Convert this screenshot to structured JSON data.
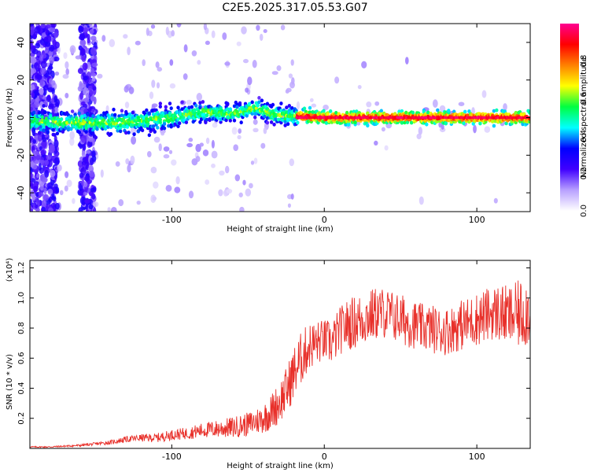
{
  "title": "C2E5.2025.317.05.53.G07",
  "chart_data": [
    {
      "type": "heatmap",
      "xlabel": "Height of straight line (km)",
      "ylabel": "Frequency (Hz)",
      "xlim": [
        -193,
        135
      ],
      "ylim": [
        -50,
        50
      ],
      "xticks": [
        -100,
        0,
        100
      ],
      "yticks": [
        -40,
        -20,
        0,
        20,
        40
      ],
      "colorbar": {
        "label": "Normalized spectral amplitude",
        "range": [
          0,
          1
        ],
        "ticks": [
          0.0,
          0.2,
          0.4,
          0.6,
          0.8
        ],
        "colors": [
          "#ffffff",
          "#b8a0ff",
          "#4000ff",
          "#0000ff",
          "#00ffff",
          "#00ff40",
          "#ffff00",
          "#ff8000",
          "#ff0000",
          "#ff0090"
        ]
      },
      "ridge": {
        "description_free": true,
        "centre_hz": [
          [
            -193,
            -2
          ],
          [
            -150,
            -3
          ],
          [
            -120,
            -2
          ],
          [
            -100,
            0
          ],
          [
            -80,
            3
          ],
          [
            -60,
            2
          ],
          [
            -45,
            5
          ],
          [
            -35,
            2
          ],
          [
            -25,
            1
          ],
          [
            0,
            0
          ],
          [
            135,
            0
          ]
        ],
        "peak_amplitude_start_km": -18
      }
    },
    {
      "type": "line",
      "xlabel": "Height of straight line (km)",
      "ylabel": "SNR (10 * v/v)",
      "ymultiplier": "(x10⁴)",
      "xlim": [
        -193,
        135
      ],
      "ylim": [
        0,
        1.25
      ],
      "xticks": [
        -100,
        0,
        100
      ],
      "yticks": [
        0.2,
        0.4,
        0.6,
        0.8,
        1.0,
        1.2
      ],
      "color": "#e8302a",
      "series": [
        {
          "x": [
            -193,
            -180,
            -170,
            -160,
            -150,
            -140,
            -130,
            -120,
            -110,
            -100,
            -90,
            -80,
            -70,
            -60,
            -50,
            -45,
            -40,
            -35,
            -30,
            -25,
            -20,
            -15,
            -10,
            -5,
            0,
            5,
            10,
            15,
            20,
            25,
            30,
            35,
            40,
            45,
            50,
            55,
            60,
            65,
            70,
            75,
            80,
            85,
            90,
            95,
            100,
            105,
            110,
            115,
            120,
            125,
            130,
            135
          ],
          "y": [
            0.01,
            0.01,
            0.015,
            0.02,
            0.03,
            0.04,
            0.06,
            0.07,
            0.07,
            0.09,
            0.1,
            0.12,
            0.13,
            0.14,
            0.16,
            0.18,
            0.2,
            0.24,
            0.3,
            0.38,
            0.5,
            0.6,
            0.68,
            0.7,
            0.72,
            0.7,
            0.78,
            0.82,
            0.84,
            0.86,
            0.88,
            0.9,
            0.9,
            0.88,
            0.86,
            0.84,
            0.82,
            0.8,
            0.8,
            0.78,
            0.78,
            0.8,
            0.82,
            0.84,
            0.86,
            0.88,
            0.9,
            0.9,
            0.88,
            0.88,
            0.9,
            0.92
          ],
          "y_spread": [
            0.004,
            0.005,
            0.006,
            0.008,
            0.01,
            0.015,
            0.02,
            0.025,
            0.03,
            0.035,
            0.04,
            0.05,
            0.06,
            0.07,
            0.08,
            0.09,
            0.1,
            0.12,
            0.14,
            0.16,
            0.18,
            0.18,
            0.16,
            0.15,
            0.14,
            0.15,
            0.16,
            0.17,
            0.18,
            0.18,
            0.18,
            0.18,
            0.17,
            0.17,
            0.17,
            0.17,
            0.16,
            0.16,
            0.16,
            0.16,
            0.16,
            0.16,
            0.17,
            0.17,
            0.18,
            0.18,
            0.18,
            0.2,
            0.2,
            0.22,
            0.24,
            0.24
          ]
        }
      ]
    }
  ]
}
